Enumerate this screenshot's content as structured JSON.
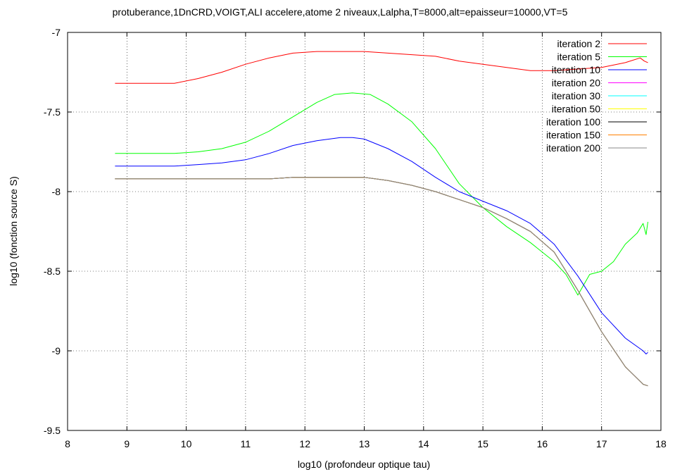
{
  "chart_data": {
    "type": "line",
    "title": "protuberance,1DnCRD,VOIGT,ALI accelere,atome 2 niveaux,Lalpha,T=8000,alt=epaisseur=10000,VT=5",
    "xlabel": "log10 (profondeur optique tau)",
    "ylabel": "log10 (fonction source S)",
    "xlim": [
      8,
      18
    ],
    "ylim": [
      -9.5,
      -7
    ],
    "xticks": [
      8,
      9,
      10,
      11,
      12,
      13,
      14,
      15,
      16,
      17,
      18
    ],
    "yticks": [
      -9.5,
      -9,
      -8.5,
      -8,
      -7.5,
      -7
    ],
    "xtick_labels": [
      "8",
      "9",
      "10",
      "11",
      "12",
      "13",
      "14",
      "15",
      "16",
      "17",
      "18"
    ],
    "ytick_labels": [
      "-9.5",
      "-9",
      "-8.5",
      "-8",
      "-7.5",
      "-7"
    ],
    "grid": true,
    "legend_position": "top-right",
    "series": [
      {
        "name": "iteration 2",
        "color": "#ff0000",
        "x": [
          8.8,
          9.8,
          10.2,
          10.6,
          11.0,
          11.4,
          11.8,
          12.2,
          12.6,
          13.0,
          13.4,
          13.8,
          14.2,
          14.6,
          15.0,
          15.4,
          15.8,
          16.2,
          16.6,
          17.0,
          17.4,
          17.65,
          17.72,
          17.78
        ],
        "y": [
          -7.32,
          -7.32,
          -7.29,
          -7.25,
          -7.2,
          -7.16,
          -7.13,
          -7.12,
          -7.12,
          -7.12,
          -7.13,
          -7.14,
          -7.15,
          -7.18,
          -7.2,
          -7.22,
          -7.24,
          -7.24,
          -7.23,
          -7.22,
          -7.19,
          -7.16,
          -7.18,
          -7.19
        ]
      },
      {
        "name": "iteration 5",
        "color": "#00ff00",
        "x": [
          8.8,
          9.8,
          10.2,
          10.6,
          11.0,
          11.4,
          11.8,
          12.2,
          12.5,
          12.8,
          13.1,
          13.4,
          13.8,
          14.2,
          14.6,
          15.0,
          15.4,
          15.8,
          16.2,
          16.4,
          16.6,
          16.8,
          17.0,
          17.2,
          17.4,
          17.6,
          17.7,
          17.75,
          17.78
        ],
        "y": [
          -7.76,
          -7.76,
          -7.75,
          -7.73,
          -7.69,
          -7.62,
          -7.53,
          -7.44,
          -7.39,
          -7.38,
          -7.39,
          -7.45,
          -7.56,
          -7.73,
          -7.95,
          -8.1,
          -8.22,
          -8.32,
          -8.44,
          -8.52,
          -8.65,
          -8.52,
          -8.5,
          -8.44,
          -8.33,
          -8.26,
          -8.2,
          -8.27,
          -8.19
        ]
      },
      {
        "name": "iteration 10",
        "color": "#0000ff",
        "x": [
          8.8,
          9.8,
          10.2,
          10.6,
          11.0,
          11.4,
          11.8,
          12.2,
          12.6,
          12.8,
          13.0,
          13.4,
          13.8,
          14.2,
          14.6,
          15.0,
          15.4,
          15.8,
          16.2,
          16.6,
          17.0,
          17.4,
          17.7,
          17.75,
          17.78
        ],
        "y": [
          -7.84,
          -7.84,
          -7.83,
          -7.82,
          -7.8,
          -7.76,
          -7.71,
          -7.68,
          -7.66,
          -7.66,
          -7.67,
          -7.73,
          -7.81,
          -7.91,
          -8.0,
          -8.06,
          -8.12,
          -8.2,
          -8.33,
          -8.53,
          -8.76,
          -8.92,
          -9.0,
          -9.02,
          -9.01
        ]
      },
      {
        "name": "iteration 20",
        "color": "#ff00ff",
        "x": [
          8.8,
          9.8,
          10.2,
          10.6,
          11.0,
          11.4,
          11.8,
          12.2,
          12.6,
          13.0,
          13.4,
          13.8,
          14.2,
          14.6,
          15.0,
          15.4,
          15.8,
          16.2,
          16.6,
          17.0,
          17.4,
          17.7,
          17.78
        ],
        "y": [
          -7.92,
          -7.92,
          -7.92,
          -7.92,
          -7.92,
          -7.92,
          -7.91,
          -7.91,
          -7.91,
          -7.91,
          -7.93,
          -7.96,
          -8.0,
          -8.05,
          -8.1,
          -8.17,
          -8.25,
          -8.38,
          -8.62,
          -8.88,
          -9.1,
          -9.21,
          -9.22
        ]
      },
      {
        "name": "iteration 30",
        "color": "#00ffff",
        "x": [
          8.8,
          9.8,
          10.2,
          10.6,
          11.0,
          11.4,
          11.8,
          12.2,
          12.6,
          13.0,
          13.4,
          13.8,
          14.2,
          14.6,
          15.0,
          15.4,
          15.8,
          16.2,
          16.6,
          17.0,
          17.4,
          17.7,
          17.78
        ],
        "y": [
          -7.92,
          -7.92,
          -7.92,
          -7.92,
          -7.92,
          -7.92,
          -7.91,
          -7.91,
          -7.91,
          -7.91,
          -7.93,
          -7.96,
          -8.0,
          -8.05,
          -8.1,
          -8.17,
          -8.25,
          -8.38,
          -8.62,
          -8.88,
          -9.1,
          -9.21,
          -9.22
        ]
      },
      {
        "name": "iteration 50",
        "color": "#ffff00",
        "x": [
          8.8,
          9.8,
          10.2,
          10.6,
          11.0,
          11.4,
          11.8,
          12.2,
          12.6,
          13.0,
          13.4,
          13.8,
          14.2,
          14.6,
          15.0,
          15.4,
          15.8,
          16.2,
          16.6,
          17.0,
          17.4,
          17.7,
          17.78
        ],
        "y": [
          -7.92,
          -7.92,
          -7.92,
          -7.92,
          -7.92,
          -7.92,
          -7.91,
          -7.91,
          -7.91,
          -7.91,
          -7.93,
          -7.96,
          -8.0,
          -8.05,
          -8.1,
          -8.17,
          -8.25,
          -8.38,
          -8.62,
          -8.88,
          -9.1,
          -9.21,
          -9.22
        ]
      },
      {
        "name": "iteration 100",
        "color": "#000000",
        "x": [
          8.8,
          9.8,
          10.2,
          10.6,
          11.0,
          11.4,
          11.8,
          12.2,
          12.6,
          13.0,
          13.4,
          13.8,
          14.2,
          14.6,
          15.0,
          15.4,
          15.8,
          16.2,
          16.6,
          17.0,
          17.4,
          17.7,
          17.78
        ],
        "y": [
          -7.92,
          -7.92,
          -7.92,
          -7.92,
          -7.92,
          -7.92,
          -7.91,
          -7.91,
          -7.91,
          -7.91,
          -7.93,
          -7.96,
          -8.0,
          -8.05,
          -8.1,
          -8.17,
          -8.25,
          -8.38,
          -8.62,
          -8.88,
          -9.1,
          -9.21,
          -9.22
        ]
      },
      {
        "name": "iteration 150",
        "color": "#ff8000",
        "x": [
          8.8,
          9.8,
          10.2,
          10.6,
          11.0,
          11.4,
          11.8,
          12.2,
          12.6,
          13.0,
          13.4,
          13.8,
          14.2,
          14.6,
          15.0,
          15.4,
          15.8,
          16.2,
          16.6,
          17.0,
          17.4,
          17.7,
          17.78
        ],
        "y": [
          -7.92,
          -7.92,
          -7.92,
          -7.92,
          -7.92,
          -7.92,
          -7.91,
          -7.91,
          -7.91,
          -7.91,
          -7.93,
          -7.96,
          -8.0,
          -8.05,
          -8.1,
          -8.17,
          -8.25,
          -8.38,
          -8.62,
          -8.88,
          -9.1,
          -9.21,
          -9.22
        ]
      },
      {
        "name": "iteration 200",
        "color": "#888888",
        "x": [
          8.8,
          9.8,
          10.2,
          10.6,
          11.0,
          11.4,
          11.8,
          12.2,
          12.6,
          13.0,
          13.4,
          13.8,
          14.2,
          14.6,
          15.0,
          15.4,
          15.8,
          16.2,
          16.6,
          17.0,
          17.4,
          17.7,
          17.78
        ],
        "y": [
          -7.92,
          -7.92,
          -7.92,
          -7.92,
          -7.92,
          -7.92,
          -7.91,
          -7.91,
          -7.91,
          -7.91,
          -7.93,
          -7.96,
          -8.0,
          -8.05,
          -8.1,
          -8.17,
          -8.25,
          -8.38,
          -8.62,
          -8.88,
          -9.1,
          -9.21,
          -9.22
        ]
      }
    ]
  }
}
